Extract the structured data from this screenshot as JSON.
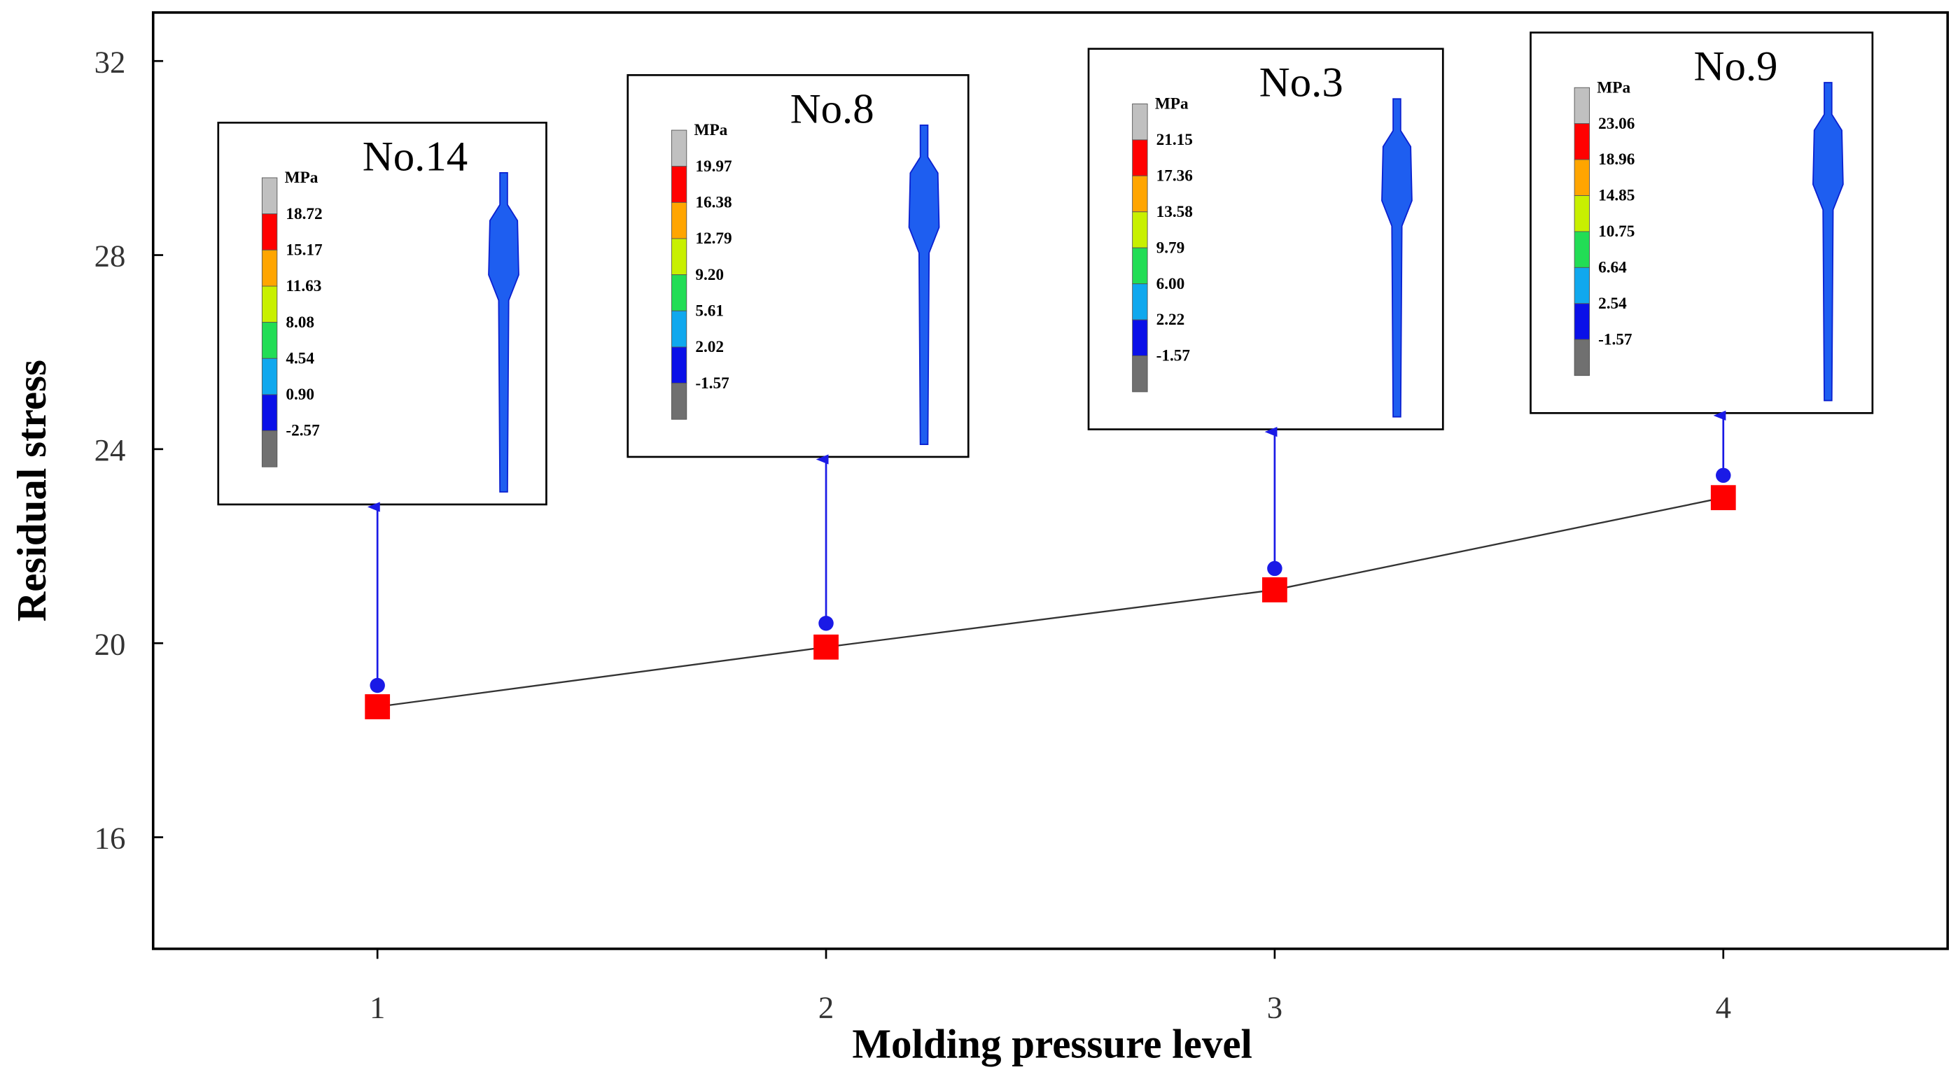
{
  "chart_data": {
    "type": "line",
    "x_label": "Molding pressure level",
    "y_label": "Residual stress",
    "x": [
      1,
      2,
      3,
      4
    ],
    "series": [
      {
        "color": "#ff0000",
        "line_color": "#333333",
        "values": [
          18.69,
          19.92,
          21.1,
          23.0
        ]
      }
    ],
    "xlim": [
      0.5,
      4.5
    ],
    "xticks": [
      1,
      2,
      3,
      4
    ],
    "ylim": [
      13.7,
      33.0
    ],
    "yticks": [
      16,
      20,
      24,
      28,
      32
    ],
    "scale_colors": [
      "#c0c0c0",
      "#ff0000",
      "#ffa500",
      "#c8f000",
      "#22dd55",
      "#10a8ee",
      "#0a10e8",
      "#707070"
    ],
    "insets": [
      {
        "title": "No.14",
        "unit": "MPa",
        "arrow_start": 19.13,
        "scale_labels": [
          "18.72",
          "15.17",
          "11.63",
          "8.08",
          "4.54",
          "0.90",
          "-2.57"
        ]
      },
      {
        "title": "No.8",
        "unit": "MPa",
        "arrow_start": 20.41,
        "scale_labels": [
          "19.97",
          "16.38",
          "12.79",
          "9.20",
          "5.61",
          "2.02",
          "-1.57"
        ]
      },
      {
        "title": "No.3",
        "unit": "MPa",
        "arrow_start": 21.54,
        "scale_labels": [
          "21.15",
          "17.36",
          "13.58",
          "9.79",
          "6.00",
          "2.22",
          "-1.57"
        ]
      },
      {
        "title": "No.9",
        "unit": "MPa",
        "arrow_start": 23.46,
        "scale_labels": [
          "23.06",
          "18.96",
          "14.85",
          "10.75",
          "6.64",
          "2.54",
          "-1.57"
        ]
      }
    ]
  }
}
